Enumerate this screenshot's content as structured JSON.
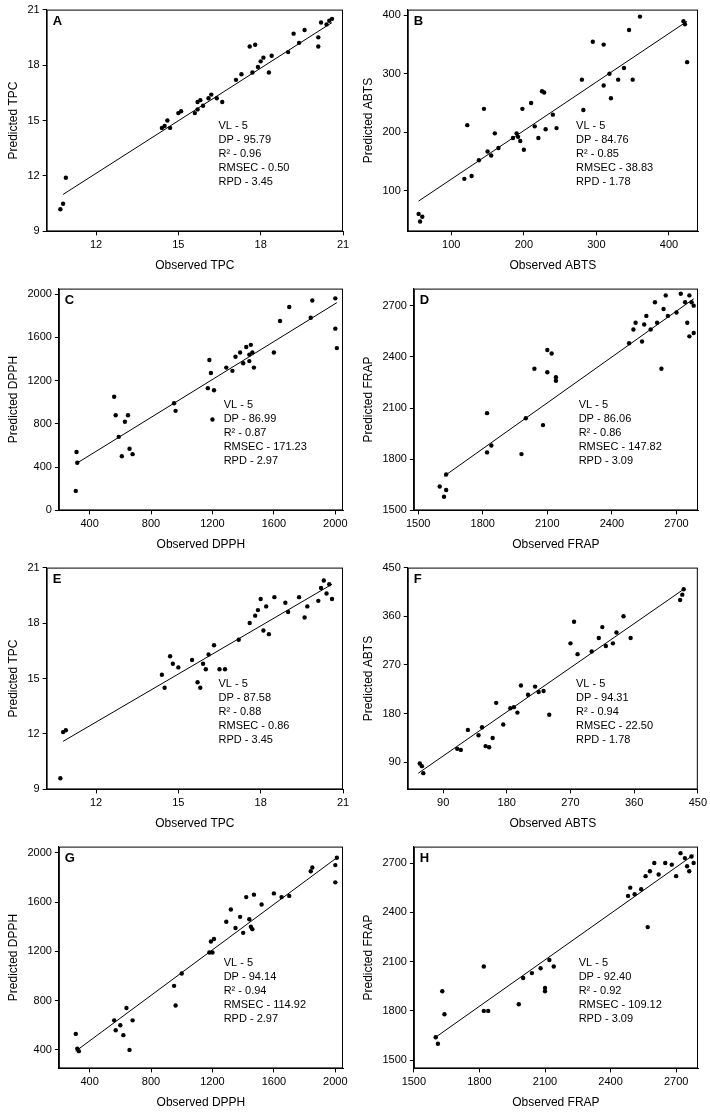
{
  "chart_data": [
    {
      "type": "scatter",
      "title": "A",
      "x_label": "Observed TPC",
      "y_label": "Predicted TPC",
      "color": "#000000",
      "marker": "circle",
      "grid": false,
      "xlim": [
        10.2,
        21
      ],
      "ylim": [
        9,
        21
      ],
      "xticks": [
        12,
        15,
        18,
        21
      ],
      "yticks": [
        9,
        12,
        15,
        18,
        21
      ],
      "x": [
        10.8,
        10.7,
        10.9,
        14.4,
        14.5,
        14.6,
        14.7,
        15.0,
        15.1,
        15.6,
        15.7,
        15.7,
        15.8,
        15.9,
        16.1,
        16.2,
        16.4,
        16.6,
        17.1,
        17.3,
        17.6,
        17.8,
        17.7,
        17.9,
        18.0,
        18.1,
        18.3,
        18.4,
        19.0,
        19.2,
        19.4,
        19.6,
        20.1,
        20.2,
        20.4,
        20.5,
        20.6,
        20.1
      ],
      "values": [
        10.5,
        10.2,
        11.9,
        14.6,
        14.7,
        15.0,
        14.6,
        15.4,
        15.5,
        15.4,
        15.6,
        16.0,
        16.1,
        15.8,
        16.2,
        16.4,
        16.2,
        16.0,
        17.2,
        17.5,
        19.0,
        19.1,
        17.6,
        17.9,
        18.2,
        18.4,
        17.6,
        18.5,
        18.7,
        19.7,
        19.2,
        19.9,
        19.5,
        20.3,
        20.2,
        20.4,
        20.5,
        19.0
      ],
      "fit_line": {
        "x": [
          10.8,
          20.6
        ],
        "y": [
          11.0,
          20.3
        ]
      },
      "annotations": [
        "VL - 5",
        "DP - 95.79",
        "R² - 0.96",
        "RMSEC - 0.50",
        "RPD - 3.45"
      ]
    },
    {
      "type": "scatter",
      "title": "B",
      "x_label": "Observed ABTS",
      "y_label": "Predicted ABTS",
      "color": "#000000",
      "marker": "circle",
      "grid": false,
      "xlim": [
        40,
        440
      ],
      "ylim": [
        30,
        410
      ],
      "xticks": [
        100,
        200,
        300,
        400
      ],
      "yticks": [
        100,
        200,
        300,
        400
      ],
      "x": [
        55,
        57,
        60,
        118,
        122,
        128,
        138,
        145,
        150,
        155,
        160,
        165,
        185,
        190,
        192,
        195,
        198,
        200,
        210,
        215,
        220,
        225,
        228,
        230,
        240,
        245,
        280,
        282,
        295,
        310,
        310,
        318,
        320,
        330,
        338,
        345,
        350,
        360,
        420,
        422,
        425
      ],
      "values": [
        60,
        47,
        55,
        120,
        212,
        125,
        152,
        240,
        167,
        160,
        198,
        173,
        190,
        198,
        192,
        185,
        240,
        170,
        250,
        210,
        190,
        270,
        268,
        205,
        230,
        207,
        290,
        238,
        355,
        350,
        280,
        300,
        258,
        290,
        310,
        375,
        290,
        398,
        390,
        385,
        320
      ],
      "fit_line": {
        "x": [
          55,
          425
        ],
        "y": [
          82,
          390
        ]
      },
      "annotations": [
        "VL - 5",
        "DP - 84.76",
        "R² - 0.85",
        "RMSEC - 38.83",
        "RPD - 1.78"
      ]
    },
    {
      "type": "scatter",
      "title": "C",
      "x_label": "Observed DPPH",
      "y_label": "Predicted DPPH",
      "color": "#000000",
      "marker": "circle",
      "grid": false,
      "xlim": [
        200,
        2050
      ],
      "ylim": [
        0,
        2050
      ],
      "xticks": [
        400,
        800,
        1200,
        1600,
        2000
      ],
      "yticks": [
        0,
        400,
        800,
        1200,
        1600,
        2000
      ],
      "x": [
        310,
        315,
        320,
        560,
        570,
        590,
        610,
        630,
        650,
        660,
        680,
        950,
        960,
        1170,
        1180,
        1190,
        1200,
        1210,
        1290,
        1330,
        1350,
        1380,
        1400,
        1420,
        1440,
        1440,
        1450,
        1460,
        1470,
        1600,
        1640,
        1700,
        1840,
        1850,
        2000,
        2010,
        2000
      ],
      "values": [
        180,
        540,
        440,
        1050,
        880,
        680,
        500,
        820,
        880,
        570,
        520,
        990,
        920,
        1130,
        1390,
        1270,
        840,
        1110,
        1320,
        1290,
        1420,
        1460,
        1360,
        1510,
        1440,
        1380,
        1530,
        1460,
        1320,
        1460,
        1750,
        1880,
        1780,
        1940,
        1960,
        1500,
        1680
      ],
      "fit_line": {
        "x": [
          310,
          2010
        ],
        "y": [
          430,
          1920
        ]
      },
      "annotations": [
        "VL - 5",
        "DP - 86.99",
        "R² - 0.87",
        "RMSEC - 171.23",
        "RPD - 2.97"
      ]
    },
    {
      "type": "scatter",
      "title": "D",
      "x_label": "Observed FRAP",
      "y_label": "Predicted FRAP",
      "color": "#000000",
      "marker": "circle",
      "grid": false,
      "xlim": [
        1480,
        2800
      ],
      "ylim": [
        1500,
        2800
      ],
      "xticks": [
        1500,
        1800,
        2100,
        2400,
        2700
      ],
      "yticks": [
        1500,
        1800,
        2100,
        2400,
        2700
      ],
      "x": [
        1600,
        1620,
        1630,
        1630,
        1820,
        1820,
        1840,
        1980,
        2000,
        2040,
        2080,
        2100,
        2100,
        2120,
        2140,
        2140,
        2480,
        2500,
        2510,
        2540,
        2550,
        2560,
        2580,
        2600,
        2610,
        2630,
        2640,
        2650,
        2660,
        2700,
        2720,
        2740,
        2750,
        2760,
        2760,
        2770,
        2780,
        2780
      ],
      "values": [
        1640,
        1580,
        1620,
        1710,
        2070,
        1840,
        1880,
        1830,
        2040,
        2330,
        2000,
        2440,
        2310,
        2420,
        2280,
        2260,
        2480,
        2560,
        2600,
        2490,
        2590,
        2640,
        2560,
        2720,
        2600,
        2330,
        2680,
        2760,
        2640,
        2660,
        2770,
        2720,
        2600,
        2520,
        2760,
        2720,
        2700,
        2540
      ],
      "fit_line": {
        "x": [
          1620,
          2780
        ],
        "y": [
          1700,
          2740
        ]
      },
      "annotations": [
        "VL - 5",
        "DP - 86.06",
        "R² - 0.86",
        "RMSEC - 147.82",
        "RPD - 3.09"
      ]
    },
    {
      "type": "scatter",
      "title": "E",
      "x_label": "Observed TPC",
      "y_label": "Predicted TPC",
      "color": "#000000",
      "marker": "circle",
      "grid": false,
      "xlim": [
        10.2,
        21
      ],
      "ylim": [
        9,
        21
      ],
      "xticks": [
        12,
        15,
        18,
        21
      ],
      "yticks": [
        9,
        12,
        15,
        18,
        21
      ],
      "x": [
        10.7,
        10.8,
        10.9,
        14.4,
        14.5,
        14.7,
        14.8,
        15.0,
        15.5,
        15.7,
        15.8,
        15.9,
        16.0,
        16.1,
        16.3,
        16.5,
        16.7,
        17.2,
        17.6,
        17.8,
        17.9,
        18.0,
        18.1,
        18.2,
        18.3,
        18.5,
        18.9,
        19.0,
        19.4,
        19.6,
        19.7,
        20.1,
        20.3,
        20.4,
        20.6,
        20.5,
        20.2
      ],
      "values": [
        9.6,
        12.1,
        12.2,
        15.2,
        14.5,
        16.2,
        15.8,
        15.6,
        16.0,
        14.8,
        14.5,
        15.8,
        15.5,
        16.3,
        16.8,
        15.5,
        15.5,
        17.1,
        18.0,
        18.4,
        18.7,
        19.3,
        17.6,
        18.9,
        17.4,
        19.4,
        19.1,
        18.6,
        19.4,
        18.3,
        18.9,
        19.2,
        20.3,
        19.6,
        19.3,
        20.1,
        19.9
      ],
      "fit_line": {
        "x": [
          10.8,
          20.6
        ],
        "y": [
          11.6,
          20.1
        ]
      },
      "annotations": [
        "VL - 5",
        "DP - 87.58",
        "R² - 0.88",
        "RMSEC - 0.86",
        "RPD - 3.45"
      ]
    },
    {
      "type": "scatter",
      "title": "F",
      "x_label": "Observed ABTS",
      "y_label": "Predicted ABTS",
      "color": "#000000",
      "marker": "circle",
      "grid": false,
      "xlim": [
        40,
        450
      ],
      "ylim": [
        40,
        450
      ],
      "xticks": [
        90,
        180,
        270,
        360,
        450
      ],
      "yticks": [
        90,
        180,
        270,
        360,
        450
      ],
      "x": [
        57,
        60,
        62,
        110,
        115,
        125,
        140,
        145,
        150,
        155,
        160,
        165,
        175,
        185,
        190,
        195,
        200,
        210,
        220,
        225,
        232,
        240,
        270,
        275,
        280,
        300,
        310,
        315,
        320,
        330,
        335,
        345,
        355,
        425,
        428,
        430
      ],
      "values": [
        88,
        83,
        70,
        115,
        113,
        150,
        140,
        155,
        120,
        118,
        135,
        200,
        160,
        190,
        192,
        182,
        232,
        215,
        230,
        220,
        222,
        178,
        310,
        350,
        290,
        295,
        320,
        340,
        305,
        310,
        330,
        360,
        320,
        390,
        400,
        410
      ],
      "fit_line": {
        "x": [
          55,
          430
        ],
        "y": [
          70,
          410
        ]
      },
      "annotations": [
        "VL - 5",
        "DP - 94.31",
        "R² - 0.94",
        "RMSEC - 22.50",
        "RPD - 1.78"
      ]
    },
    {
      "type": "scatter",
      "title": "G",
      "x_label": "Observed DPPH",
      "y_label": "Predicted DPPH",
      "color": "#000000",
      "marker": "circle",
      "grid": false,
      "xlim": [
        200,
        2050
      ],
      "ylim": [
        250,
        2050
      ],
      "xticks": [
        400,
        800,
        1200,
        1600,
        2000
      ],
      "yticks": [
        400,
        800,
        1200,
        1600,
        2000
      ],
      "x": [
        310,
        320,
        330,
        560,
        570,
        600,
        620,
        640,
        660,
        680,
        950,
        960,
        1000,
        1180,
        1190,
        1200,
        1210,
        1290,
        1320,
        1350,
        1380,
        1400,
        1420,
        1440,
        1450,
        1460,
        1470,
        1520,
        1600,
        1650,
        1700,
        1840,
        1850,
        2000,
        2010,
        2000
      ],
      "values": [
        530,
        410,
        390,
        640,
        560,
        600,
        520,
        740,
        400,
        640,
        920,
        760,
        1020,
        1190,
        1280,
        1190,
        1300,
        1440,
        1540,
        1390,
        1480,
        1350,
        1640,
        1460,
        1400,
        1380,
        1660,
        1580,
        1670,
        1640,
        1650,
        1850,
        1880,
        1900,
        1960,
        1760
      ],
      "fit_line": {
        "x": [
          310,
          2010
        ],
        "y": [
          390,
          1960
        ]
      },
      "annotations": [
        "VL - 5",
        "DP - 94.14",
        "R² - 0.94",
        "RMSEC - 114.92",
        "RPD - 2.97"
      ]
    },
    {
      "type": "scatter",
      "title": "H",
      "x_label": "Observed FRAP",
      "y_label": "Predicted FRAP",
      "color": "#000000",
      "marker": "circle",
      "grid": false,
      "xlim": [
        1500,
        2800
      ],
      "ylim": [
        1450,
        2800
      ],
      "xticks": [
        1500,
        1800,
        2100,
        2400,
        2700
      ],
      "yticks": [
        1500,
        1800,
        2100,
        2400,
        2700
      ],
      "x": [
        1600,
        1610,
        1630,
        1640,
        1820,
        1820,
        1840,
        1980,
        2000,
        2040,
        2080,
        2100,
        2100,
        2120,
        2140,
        2480,
        2490,
        2510,
        2540,
        2560,
        2570,
        2580,
        2600,
        2620,
        2650,
        2680,
        2700,
        2720,
        2740,
        2750,
        2760,
        2770,
        2780
      ],
      "values": [
        1640,
        1600,
        1920,
        1780,
        2070,
        1800,
        1800,
        1840,
        2000,
        2030,
        2060,
        1920,
        1940,
        2110,
        2070,
        2500,
        2550,
        2510,
        2540,
        2620,
        2310,
        2650,
        2700,
        2630,
        2700,
        2690,
        2620,
        2760,
        2730,
        2680,
        2650,
        2740,
        2700
      ],
      "fit_line": {
        "x": [
          1600,
          2780
        ],
        "y": [
          1640,
          2750
        ]
      },
      "annotations": [
        "VL - 5",
        "DP - 92.40",
        "R² - 0.92",
        "RMSEC - 109.12",
        "RPD - 3.09"
      ]
    }
  ]
}
